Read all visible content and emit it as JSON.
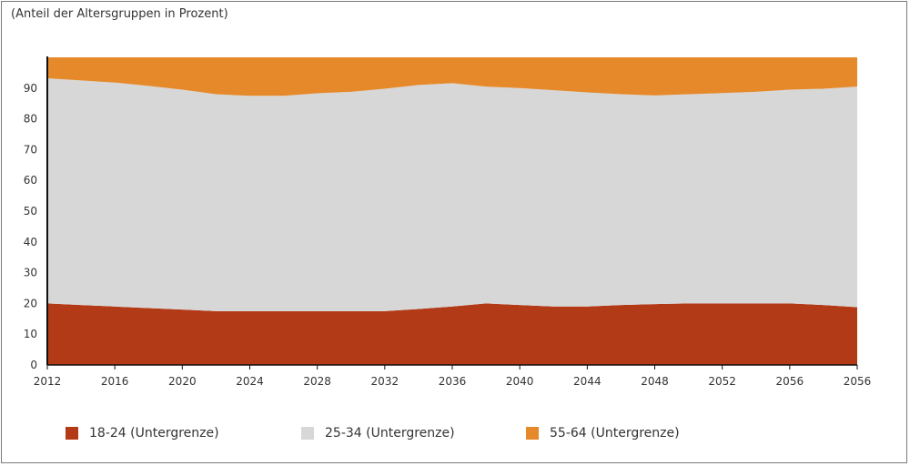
{
  "chart_data": {
    "type": "area",
    "stacked": true,
    "title": "",
    "unit_label": "(Anteil der Altersgruppen in Prozent)",
    "x_tick_labels": [
      "2012",
      "2016",
      "2020",
      "2024",
      "2028",
      "2032",
      "2036",
      "2040",
      "2044",
      "2048",
      "2052",
      "2056",
      "2056"
    ],
    "y_ticks": [
      0,
      10,
      20,
      30,
      40,
      50,
      60,
      70,
      80,
      90
    ],
    "ylim": [
      0,
      100
    ],
    "grid": false,
    "legend_position": "bottom",
    "x": [
      0,
      1,
      2,
      3,
      4,
      5,
      6,
      7,
      8,
      9,
      10,
      11,
      12,
      13,
      14,
      15,
      16,
      17,
      18,
      19,
      20,
      21,
      22,
      23,
      24
    ],
    "series": [
      {
        "name": "18-24 (Untergrenze)",
        "color": "#b33a17",
        "values": [
          20,
          19.5,
          19,
          18.5,
          18,
          17.5,
          17.5,
          17.5,
          17.5,
          17.5,
          17.5,
          18.2,
          19,
          20,
          19.5,
          19,
          19,
          19.5,
          19.8,
          20,
          20,
          20,
          20,
          19.5,
          18.8
        ]
      },
      {
        "name": "25-34 (Untergrenze)",
        "color": "#d7d7d7",
        "values": [
          73.2,
          73.0,
          72.8,
          72.2,
          71.5,
          70.5,
          70.0,
          70.0,
          70.8,
          71.3,
          72.3,
          72.8,
          72.6,
          70.5,
          70.5,
          70.3,
          69.6,
          68.5,
          67.8,
          68.0,
          68.4,
          68.8,
          69.5,
          70.3,
          71.7
        ]
      },
      {
        "name": "55-64 (Untergrenze)",
        "color": "#e5892a",
        "values": [
          6.8,
          7.5,
          8.2,
          9.3,
          10.5,
          12.0,
          12.5,
          12.5,
          11.7,
          11.2,
          10.2,
          9.0,
          8.4,
          9.5,
          10.0,
          10.7,
          11.4,
          12.0,
          12.4,
          12.0,
          11.6,
          11.2,
          10.5,
          10.2,
          9.5
        ]
      }
    ]
  }
}
